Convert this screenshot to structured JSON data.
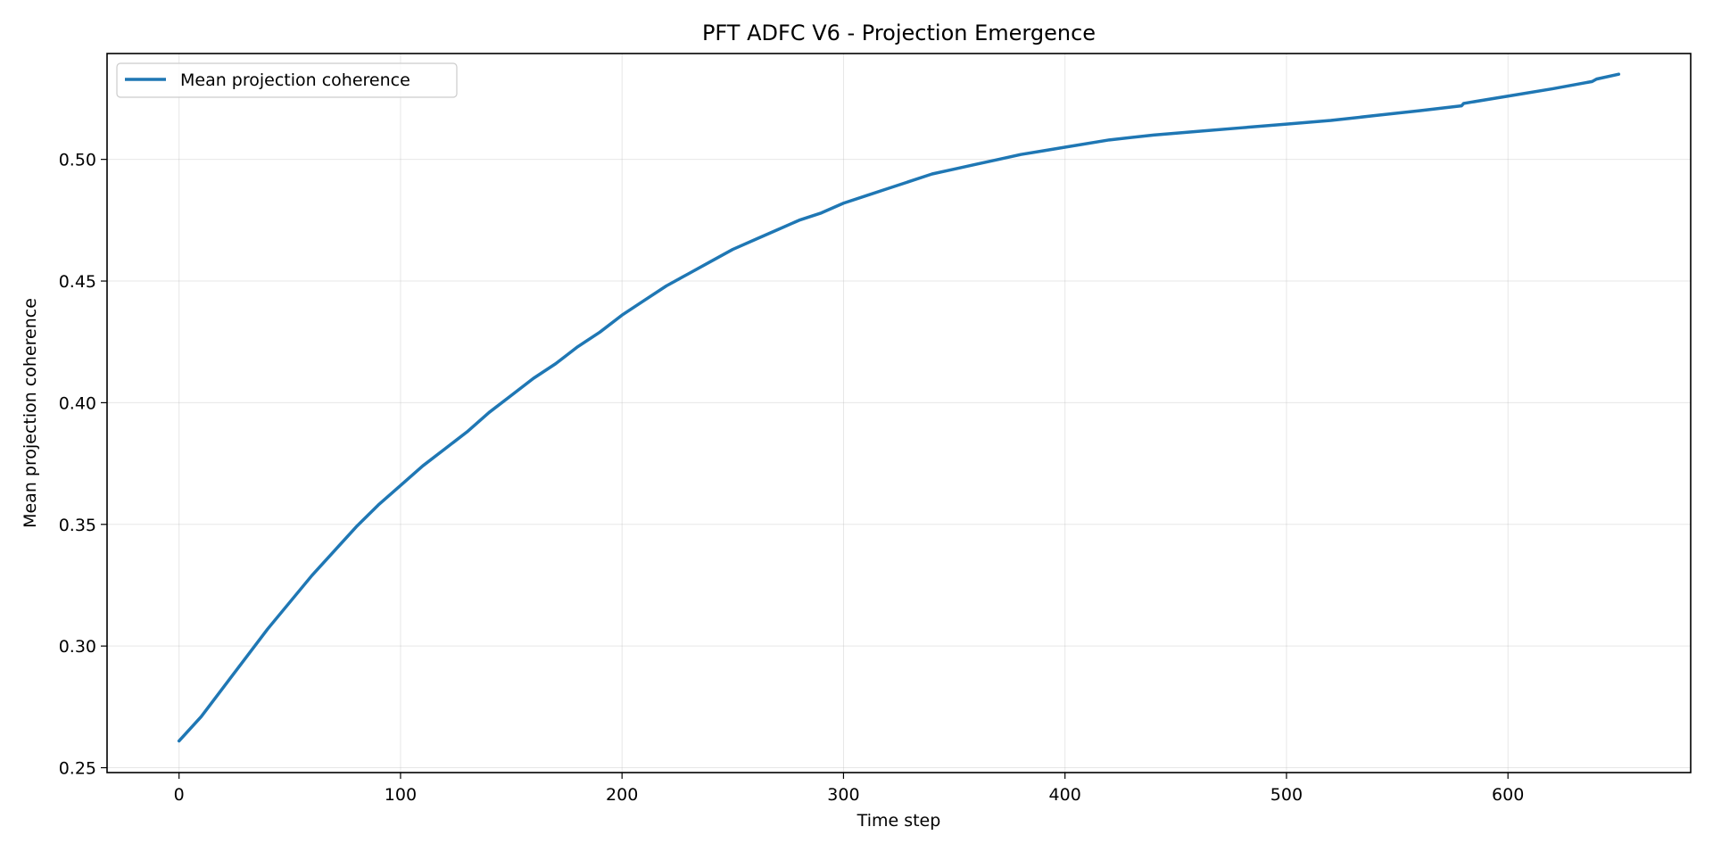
{
  "chart_data": {
    "type": "line",
    "title": "PFT ADFC V6 - Projection Emergence",
    "xlabel": "Time step",
    "ylabel": "Mean projection coherence",
    "xlim": [
      -32.5,
      682.5
    ],
    "ylim": [
      0.248,
      0.5435
    ],
    "xticks": [
      0,
      100,
      200,
      300,
      400,
      500,
      600
    ],
    "xtick_labels": [
      "0",
      "100",
      "200",
      "300",
      "400",
      "500",
      "600"
    ],
    "yticks": [
      0.25,
      0.3,
      0.35,
      0.4,
      0.45,
      0.5
    ],
    "ytick_labels": [
      "0.25",
      "0.30",
      "0.35",
      "0.40",
      "0.45",
      "0.50"
    ],
    "grid": true,
    "legend_position": "top-left",
    "series": [
      {
        "name": "Mean projection coherence",
        "color": "#1f77b4",
        "x": [
          0,
          10,
          20,
          30,
          40,
          50,
          60,
          70,
          80,
          90,
          100,
          110,
          120,
          130,
          140,
          150,
          160,
          170,
          180,
          190,
          200,
          210,
          220,
          230,
          240,
          250,
          260,
          270,
          280,
          290,
          300,
          310,
          320,
          330,
          340,
          350,
          360,
          370,
          380,
          390,
          400,
          420,
          440,
          460,
          480,
          500,
          520,
          540,
          560,
          579,
          580,
          600,
          620,
          638,
          640,
          650
        ],
        "y": [
          0.261,
          0.271,
          0.283,
          0.295,
          0.307,
          0.318,
          0.329,
          0.339,
          0.349,
          0.358,
          0.366,
          0.374,
          0.381,
          0.388,
          0.396,
          0.403,
          0.41,
          0.416,
          0.423,
          0.429,
          0.436,
          0.442,
          0.448,
          0.453,
          0.458,
          0.463,
          0.467,
          0.471,
          0.475,
          0.478,
          0.482,
          0.485,
          0.488,
          0.491,
          0.494,
          0.496,
          0.498,
          0.5,
          0.502,
          0.5035,
          0.505,
          0.508,
          0.51,
          0.5115,
          0.513,
          0.5145,
          0.516,
          0.518,
          0.52,
          0.522,
          0.523,
          0.526,
          0.529,
          0.532,
          0.533,
          0.535
        ]
      }
    ]
  }
}
